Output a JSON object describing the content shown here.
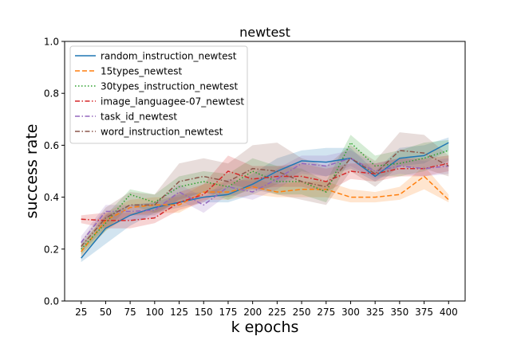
{
  "chart_data": {
    "type": "line",
    "title": "newtest",
    "xlabel": "k epochs",
    "ylabel": "success rate",
    "x": [
      25,
      50,
      75,
      100,
      125,
      150,
      175,
      200,
      225,
      250,
      275,
      300,
      325,
      350,
      375,
      400
    ],
    "x_tick_labels": [
      "25",
      "50",
      "75",
      "100",
      "125",
      "150",
      "175",
      "200",
      "225",
      "250",
      "275",
      "300",
      "325",
      "350",
      "375",
      "400"
    ],
    "ylim": [
      0,
      1
    ],
    "y_ticks": [
      0.0,
      0.2,
      0.4,
      0.6,
      0.8,
      1.0
    ],
    "y_tick_labels": [
      "0.0",
      "0.2",
      "0.4",
      "0.6",
      "0.8",
      "1.0"
    ],
    "grid": false,
    "legend_position": "top-left",
    "series": [
      {
        "name": "random_instruction_newtest",
        "color": "#1f77b4",
        "linestyle": "solid",
        "values": [
          0.165,
          0.28,
          0.33,
          0.36,
          0.38,
          0.4,
          0.41,
          0.45,
          0.5,
          0.54,
          0.535,
          0.55,
          0.48,
          0.55,
          0.56,
          0.61
        ],
        "lower": [
          0.15,
          0.22,
          0.29,
          0.34,
          0.36,
          0.38,
          0.38,
          0.41,
          0.45,
          0.5,
          0.48,
          0.51,
          0.46,
          0.52,
          0.53,
          0.58
        ],
        "upper": [
          0.19,
          0.33,
          0.37,
          0.38,
          0.41,
          0.42,
          0.44,
          0.49,
          0.55,
          0.58,
          0.59,
          0.59,
          0.5,
          0.59,
          0.6,
          0.63
        ]
      },
      {
        "name": "15types_newtest",
        "color": "#ff7f0e",
        "linestyle": "dashed",
        "values": [
          0.19,
          0.31,
          0.36,
          0.37,
          0.37,
          0.42,
          0.42,
          0.44,
          0.42,
          0.43,
          0.43,
          0.4,
          0.4,
          0.41,
          0.48,
          0.39
        ],
        "lower": [
          0.17,
          0.27,
          0.33,
          0.34,
          0.34,
          0.39,
          0.39,
          0.41,
          0.4,
          0.4,
          0.4,
          0.38,
          0.38,
          0.39,
          0.43,
          0.38
        ],
        "upper": [
          0.21,
          0.34,
          0.39,
          0.4,
          0.4,
          0.45,
          0.46,
          0.47,
          0.45,
          0.46,
          0.46,
          0.43,
          0.42,
          0.44,
          0.52,
          0.41
        ]
      },
      {
        "name": "30types_instruction_newtest",
        "color": "#2ca02c",
        "linestyle": "dotted",
        "values": [
          0.2,
          0.3,
          0.41,
          0.38,
          0.44,
          0.46,
          0.44,
          0.5,
          0.46,
          0.46,
          0.42,
          0.61,
          0.52,
          0.53,
          0.55,
          0.58
        ],
        "lower": [
          0.18,
          0.27,
          0.37,
          0.34,
          0.38,
          0.42,
          0.39,
          0.44,
          0.41,
          0.41,
          0.38,
          0.55,
          0.48,
          0.48,
          0.5,
          0.54
        ],
        "upper": [
          0.22,
          0.33,
          0.43,
          0.41,
          0.48,
          0.5,
          0.49,
          0.55,
          0.52,
          0.51,
          0.46,
          0.64,
          0.56,
          0.58,
          0.61,
          0.62
        ]
      },
      {
        "name": "image_languagee-07_newtest",
        "color": "#d62728",
        "linestyle": "dashdot",
        "values": [
          0.315,
          0.31,
          0.31,
          0.32,
          0.38,
          0.41,
          0.5,
          0.47,
          0.48,
          0.48,
          0.46,
          0.5,
          0.49,
          0.51,
          0.51,
          0.53
        ],
        "lower": [
          0.3,
          0.28,
          0.28,
          0.3,
          0.35,
          0.38,
          0.45,
          0.43,
          0.44,
          0.44,
          0.42,
          0.47,
          0.46,
          0.48,
          0.48,
          0.5
        ],
        "upper": [
          0.33,
          0.34,
          0.34,
          0.35,
          0.42,
          0.45,
          0.56,
          0.52,
          0.52,
          0.53,
          0.51,
          0.53,
          0.53,
          0.55,
          0.55,
          0.56
        ]
      },
      {
        "name": "task_id_newtest",
        "color": "#9467bd",
        "linestyle": "dashdot",
        "values": [
          0.225,
          0.345,
          0.345,
          0.35,
          0.42,
          0.37,
          0.44,
          0.42,
          0.47,
          0.53,
          0.52,
          0.55,
          0.5,
          0.52,
          0.51,
          0.52
        ],
        "lower": [
          0.2,
          0.32,
          0.31,
          0.32,
          0.39,
          0.34,
          0.41,
          0.39,
          0.43,
          0.49,
          0.48,
          0.52,
          0.47,
          0.49,
          0.48,
          0.49
        ],
        "upper": [
          0.25,
          0.37,
          0.37,
          0.38,
          0.45,
          0.4,
          0.47,
          0.46,
          0.51,
          0.56,
          0.56,
          0.58,
          0.53,
          0.55,
          0.54,
          0.55
        ]
      },
      {
        "name": "word_instruction_newtest",
        "color": "#8c564b",
        "linestyle": "dashdot",
        "values": [
          0.21,
          0.32,
          0.37,
          0.37,
          0.46,
          0.48,
          0.46,
          0.51,
          0.5,
          0.46,
          0.44,
          0.55,
          0.49,
          0.58,
          0.57,
          0.52
        ],
        "lower": [
          0.19,
          0.28,
          0.33,
          0.33,
          0.39,
          0.42,
          0.4,
          0.43,
          0.41,
          0.39,
          0.37,
          0.5,
          0.44,
          0.52,
          0.51,
          0.48
        ],
        "upper": [
          0.23,
          0.36,
          0.42,
          0.41,
          0.53,
          0.55,
          0.53,
          0.6,
          0.61,
          0.55,
          0.52,
          0.6,
          0.54,
          0.65,
          0.64,
          0.56
        ]
      }
    ]
  }
}
